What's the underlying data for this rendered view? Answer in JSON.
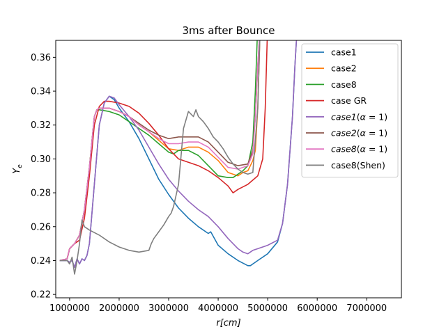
{
  "chart_data": {
    "type": "line",
    "title": "3ms after Bounce",
    "xlabel": "r[cm]",
    "ylabel": "Y_e",
    "xlim": [
      720000,
      7700000
    ],
    "ylim": [
      0.218,
      0.37
    ],
    "xticks": [
      1000000,
      2000000,
      3000000,
      4000000,
      5000000,
      6000000,
      7000000
    ],
    "xtick_labels": [
      "1000000",
      "2000000",
      "3000000",
      "4000000",
      "5000000",
      "6000000",
      "7000000"
    ],
    "yticks": [
      0.22,
      0.24,
      0.26,
      0.28,
      0.3,
      0.32,
      0.34,
      0.36
    ],
    "ytick_labels": [
      "0.22",
      "0.24",
      "0.26",
      "0.28",
      "0.30",
      "0.32",
      "0.34",
      "0.36"
    ],
    "grid": false,
    "legend_position": "top-right",
    "series": [
      {
        "name": "case1",
        "color": "#1f77b4",
        "x": [
          800000,
          950000,
          1000000,
          1050000,
          1100000,
          1150000,
          1200000,
          1250000,
          1300000,
          1350000,
          1400000,
          1500000,
          1600000,
          1700000,
          1800000,
          1900000,
          2000000,
          2200000,
          2400000,
          2600000,
          2800000,
          3000000,
          3200000,
          3400000,
          3600000,
          3800000,
          3850000,
          4000000,
          4200000,
          4400000,
          4600000,
          4650000,
          4800000,
          5000000,
          5200000,
          5300000,
          5400000,
          5500000,
          5550000,
          5600000
        ],
        "y": [
          0.24,
          0.24,
          0.239,
          0.24,
          0.236,
          0.241,
          0.238,
          0.241,
          0.24,
          0.243,
          0.25,
          0.285,
          0.32,
          0.333,
          0.337,
          0.335,
          0.33,
          0.322,
          0.312,
          0.3,
          0.288,
          0.279,
          0.271,
          0.265,
          0.26,
          0.256,
          0.257,
          0.249,
          0.244,
          0.24,
          0.237,
          0.237,
          0.24,
          0.244,
          0.251,
          0.262,
          0.285,
          0.325,
          0.355,
          0.38
        ]
      },
      {
        "name": "case2",
        "color": "#ff7f0e",
        "x": [
          800000,
          950000,
          1000000,
          1100000,
          1200000,
          1300000,
          1400000,
          1500000,
          1550000,
          1600000,
          1800000,
          2000000,
          2200000,
          2400000,
          2600000,
          2800000,
          3000000,
          3200000,
          3400000,
          3600000,
          3800000,
          4000000,
          4200000,
          4400000,
          4500000,
          4600000,
          4700000,
          4750000,
          4800000,
          4850000
        ],
        "y": [
          0.24,
          0.241,
          0.247,
          0.25,
          0.255,
          0.27,
          0.295,
          0.325,
          0.329,
          0.33,
          0.33,
          0.328,
          0.325,
          0.32,
          0.316,
          0.311,
          0.306,
          0.305,
          0.307,
          0.307,
          0.304,
          0.299,
          0.292,
          0.29,
          0.292,
          0.293,
          0.299,
          0.305,
          0.33,
          0.38
        ]
      },
      {
        "name": "case8",
        "color": "#2ca02c",
        "x": [
          800000,
          950000,
          1000000,
          1100000,
          1200000,
          1300000,
          1400000,
          1500000,
          1550000,
          1600000,
          1800000,
          2000000,
          2200000,
          2400000,
          2600000,
          2800000,
          3000000,
          3100000,
          3200000,
          3400000,
          3600000,
          3800000,
          4000000,
          4200000,
          4300000,
          4400000,
          4500000,
          4600000,
          4700000,
          4750000,
          4800000
        ],
        "y": [
          0.24,
          0.241,
          0.247,
          0.25,
          0.255,
          0.27,
          0.295,
          0.325,
          0.329,
          0.329,
          0.328,
          0.326,
          0.322,
          0.318,
          0.314,
          0.309,
          0.304,
          0.303,
          0.305,
          0.305,
          0.302,
          0.296,
          0.29,
          0.289,
          0.289,
          0.291,
          0.293,
          0.296,
          0.31,
          0.34,
          0.38
        ]
      },
      {
        "name": "case GR",
        "color": "#d62728",
        "x": [
          800000,
          950000,
          1000000,
          1100000,
          1200000,
          1300000,
          1400000,
          1500000,
          1600000,
          1700000,
          1800000,
          2000000,
          2200000,
          2400000,
          2600000,
          2800000,
          3000000,
          3200000,
          3400000,
          3600000,
          3800000,
          4000000,
          4200000,
          4300000,
          4400000,
          4600000,
          4800000,
          4900000,
          4950000,
          5000000
        ],
        "y": [
          0.24,
          0.241,
          0.247,
          0.25,
          0.252,
          0.265,
          0.29,
          0.32,
          0.331,
          0.334,
          0.334,
          0.333,
          0.331,
          0.327,
          0.321,
          0.314,
          0.306,
          0.3,
          0.298,
          0.296,
          0.293,
          0.289,
          0.284,
          0.28,
          0.282,
          0.285,
          0.29,
          0.3,
          0.33,
          0.38
        ]
      },
      {
        "name": "$case1 (\\alpha = 1)$",
        "color": "#9467bd",
        "x": [
          800000,
          950000,
          1000000,
          1050000,
          1100000,
          1150000,
          1200000,
          1250000,
          1300000,
          1350000,
          1400000,
          1500000,
          1600000,
          1700000,
          1800000,
          1900000,
          2000000,
          2200000,
          2400000,
          2600000,
          2800000,
          3000000,
          3200000,
          3400000,
          3600000,
          3800000,
          4000000,
          4200000,
          4400000,
          4500000,
          4600000,
          4700000,
          4800000,
          5000000,
          5200000,
          5300000,
          5400000,
          5500000,
          5550000,
          5600000
        ],
        "y": [
          0.24,
          0.24,
          0.239,
          0.24,
          0.236,
          0.241,
          0.238,
          0.241,
          0.24,
          0.243,
          0.25,
          0.285,
          0.32,
          0.333,
          0.337,
          0.336,
          0.332,
          0.325,
          0.317,
          0.307,
          0.297,
          0.288,
          0.281,
          0.275,
          0.27,
          0.266,
          0.26,
          0.253,
          0.247,
          0.245,
          0.244,
          0.246,
          0.247,
          0.249,
          0.252,
          0.262,
          0.285,
          0.325,
          0.355,
          0.38
        ]
      },
      {
        "name": "$case2 (\\alpha = 1)$",
        "color": "#8c564b",
        "x": [
          800000,
          950000,
          1000000,
          1100000,
          1200000,
          1300000,
          1400000,
          1500000,
          1550000,
          1600000,
          1800000,
          2000000,
          2200000,
          2400000,
          2600000,
          2800000,
          3000000,
          3200000,
          3400000,
          3600000,
          3800000,
          4000000,
          4200000,
          4400000,
          4600000,
          4700000,
          4750000,
          4800000,
          4850000
        ],
        "y": [
          0.24,
          0.241,
          0.247,
          0.25,
          0.255,
          0.27,
          0.295,
          0.325,
          0.329,
          0.33,
          0.33,
          0.328,
          0.325,
          0.321,
          0.317,
          0.314,
          0.312,
          0.313,
          0.313,
          0.313,
          0.31,
          0.304,
          0.298,
          0.296,
          0.297,
          0.305,
          0.325,
          0.355,
          0.38
        ]
      },
      {
        "name": "$case8 (\\alpha = 1)$",
        "color": "#e377c2",
        "x": [
          800000,
          950000,
          1000000,
          1100000,
          1200000,
          1300000,
          1400000,
          1500000,
          1550000,
          1600000,
          1800000,
          2000000,
          2200000,
          2400000,
          2600000,
          2800000,
          3000000,
          3200000,
          3400000,
          3600000,
          3800000,
          4000000,
          4200000,
          4400000,
          4600000,
          4700000,
          4750000,
          4800000,
          4850000
        ],
        "y": [
          0.24,
          0.241,
          0.247,
          0.25,
          0.255,
          0.27,
          0.295,
          0.325,
          0.329,
          0.33,
          0.33,
          0.328,
          0.325,
          0.32,
          0.316,
          0.312,
          0.309,
          0.309,
          0.31,
          0.31,
          0.307,
          0.301,
          0.295,
          0.294,
          0.296,
          0.303,
          0.325,
          0.355,
          0.38
        ]
      },
      {
        "name": "case8(Shen)",
        "color": "#7f7f7f",
        "x": [
          800000,
          950000,
          1000000,
          1050000,
          1100000,
          1150000,
          1200000,
          1250000,
          1300000,
          1400000,
          1600000,
          1800000,
          2000000,
          2200000,
          2400000,
          2600000,
          2650000,
          2700000,
          2800000,
          2900000,
          3000000,
          3050000,
          3100000,
          3200000,
          3300000,
          3400000,
          3500000,
          3550000,
          3600000,
          3700000,
          3800000,
          3900000,
          4000000,
          4100000,
          4200000,
          4300000,
          4400000,
          4500000,
          4600000,
          4700000,
          4800000,
          4850000
        ],
        "y": [
          0.24,
          0.24,
          0.238,
          0.242,
          0.232,
          0.24,
          0.25,
          0.264,
          0.26,
          0.258,
          0.255,
          0.251,
          0.248,
          0.246,
          0.245,
          0.246,
          0.25,
          0.253,
          0.257,
          0.261,
          0.266,
          0.268,
          0.272,
          0.285,
          0.318,
          0.328,
          0.325,
          0.329,
          0.325,
          0.322,
          0.318,
          0.313,
          0.31,
          0.306,
          0.301,
          0.297,
          0.294,
          0.292,
          0.291,
          0.292,
          0.33,
          0.38
        ]
      }
    ]
  }
}
